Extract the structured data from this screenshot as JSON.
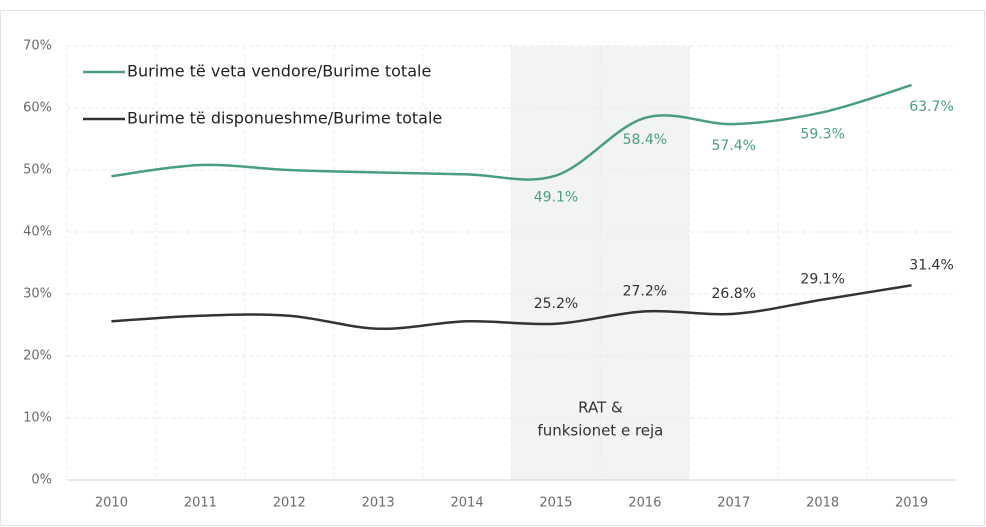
{
  "chart_data": {
    "type": "line",
    "categories": [
      "2010",
      "2011",
      "2012",
      "2013",
      "2014",
      "2015",
      "2016",
      "2017",
      "2018",
      "2019"
    ],
    "series": [
      {
        "name": "Burime të veta vendore/Burime totale",
        "color": "#4a9e7f",
        "values": [
          49.0,
          50.8,
          50.0,
          49.6,
          49.3,
          49.1,
          58.4,
          57.4,
          59.3,
          63.7
        ],
        "value_labels": [
          null,
          null,
          null,
          null,
          null,
          "49.1%",
          "58.4%",
          "57.4%",
          "59.3%",
          "63.7%"
        ]
      },
      {
        "name": "Burime të disponueshme/Burime totale",
        "color": "#333333",
        "values": [
          25.6,
          26.5,
          26.5,
          24.4,
          25.6,
          25.2,
          27.2,
          26.8,
          29.1,
          31.4
        ],
        "value_labels": [
          null,
          null,
          null,
          null,
          null,
          "25.2%",
          "27.2%",
          "26.8%",
          "29.1%",
          "31.4%"
        ]
      }
    ],
    "ylim": [
      0,
      70
    ],
    "yticks": [
      {
        "value": 0,
        "label": "0%"
      },
      {
        "value": 10,
        "label": "10%"
      },
      {
        "value": 20,
        "label": "20%"
      },
      {
        "value": 30,
        "label": "30%"
      },
      {
        "value": 40,
        "label": "40%"
      },
      {
        "value": 50,
        "label": "50%"
      },
      {
        "value": 60,
        "label": "60%"
      },
      {
        "value": 70,
        "label": "70%"
      }
    ],
    "grid": true,
    "highlight_categories": [
      "2015",
      "2016"
    ],
    "annotation": [
      "RAT &",
      "funksionet e reja"
    ],
    "legend": "upper left"
  }
}
